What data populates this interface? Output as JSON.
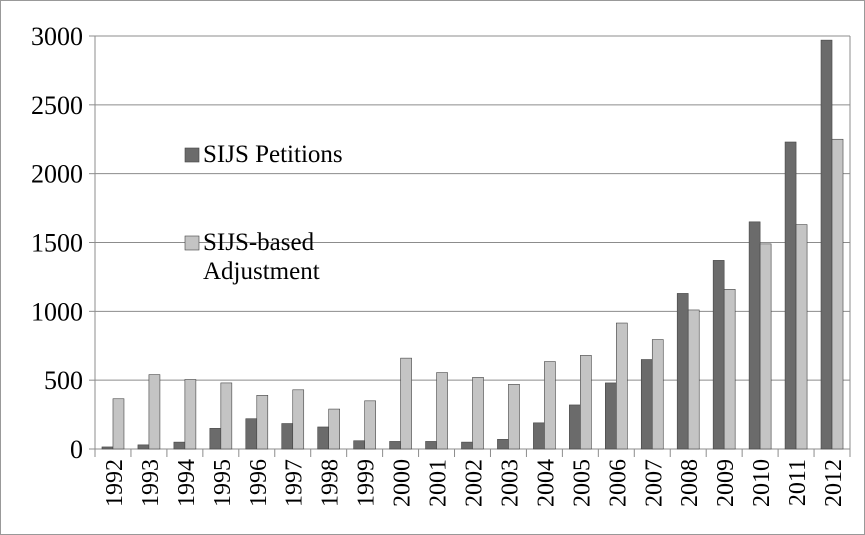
{
  "chart_data": {
    "type": "bar",
    "categories": [
      "1992",
      "1993",
      "1994",
      "1995",
      "1996",
      "1997",
      "1998",
      "1999",
      "2000",
      "2001",
      "2002",
      "2003",
      "2004",
      "2005",
      "2006",
      "2007",
      "2008",
      "2009",
      "2010",
      "2011",
      "2012"
    ],
    "series": [
      {
        "name": "SIJS Petitions",
        "color": "#6b6b6b",
        "values": [
          15,
          30,
          50,
          150,
          220,
          185,
          160,
          60,
          55,
          55,
          50,
          70,
          190,
          320,
          480,
          650,
          1130,
          1370,
          1650,
          2230,
          2970
        ]
      },
      {
        "name": "SIJS-based Adjustment",
        "color": "#c4c4c4",
        "values": [
          365,
          540,
          505,
          480,
          390,
          430,
          290,
          350,
          660,
          555,
          520,
          470,
          635,
          680,
          915,
          795,
          1010,
          1160,
          1490,
          1630,
          2250
        ]
      }
    ],
    "ylim": [
      0,
      3000
    ],
    "yticks": [
      0,
      500,
      1000,
      1500,
      2000,
      2500,
      3000
    ],
    "grid": true,
    "legend": "upper left"
  }
}
